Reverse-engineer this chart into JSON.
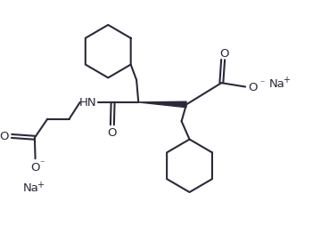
{
  "background_color": "#ffffff",
  "line_color": "#2a2a3a",
  "text_color": "#2a2a3a",
  "line_width": 1.5,
  "figsize": [
    3.69,
    2.55
  ],
  "dpi": 100,
  "xlim": [
    0,
    10
  ],
  "ylim": [
    0,
    7
  ]
}
